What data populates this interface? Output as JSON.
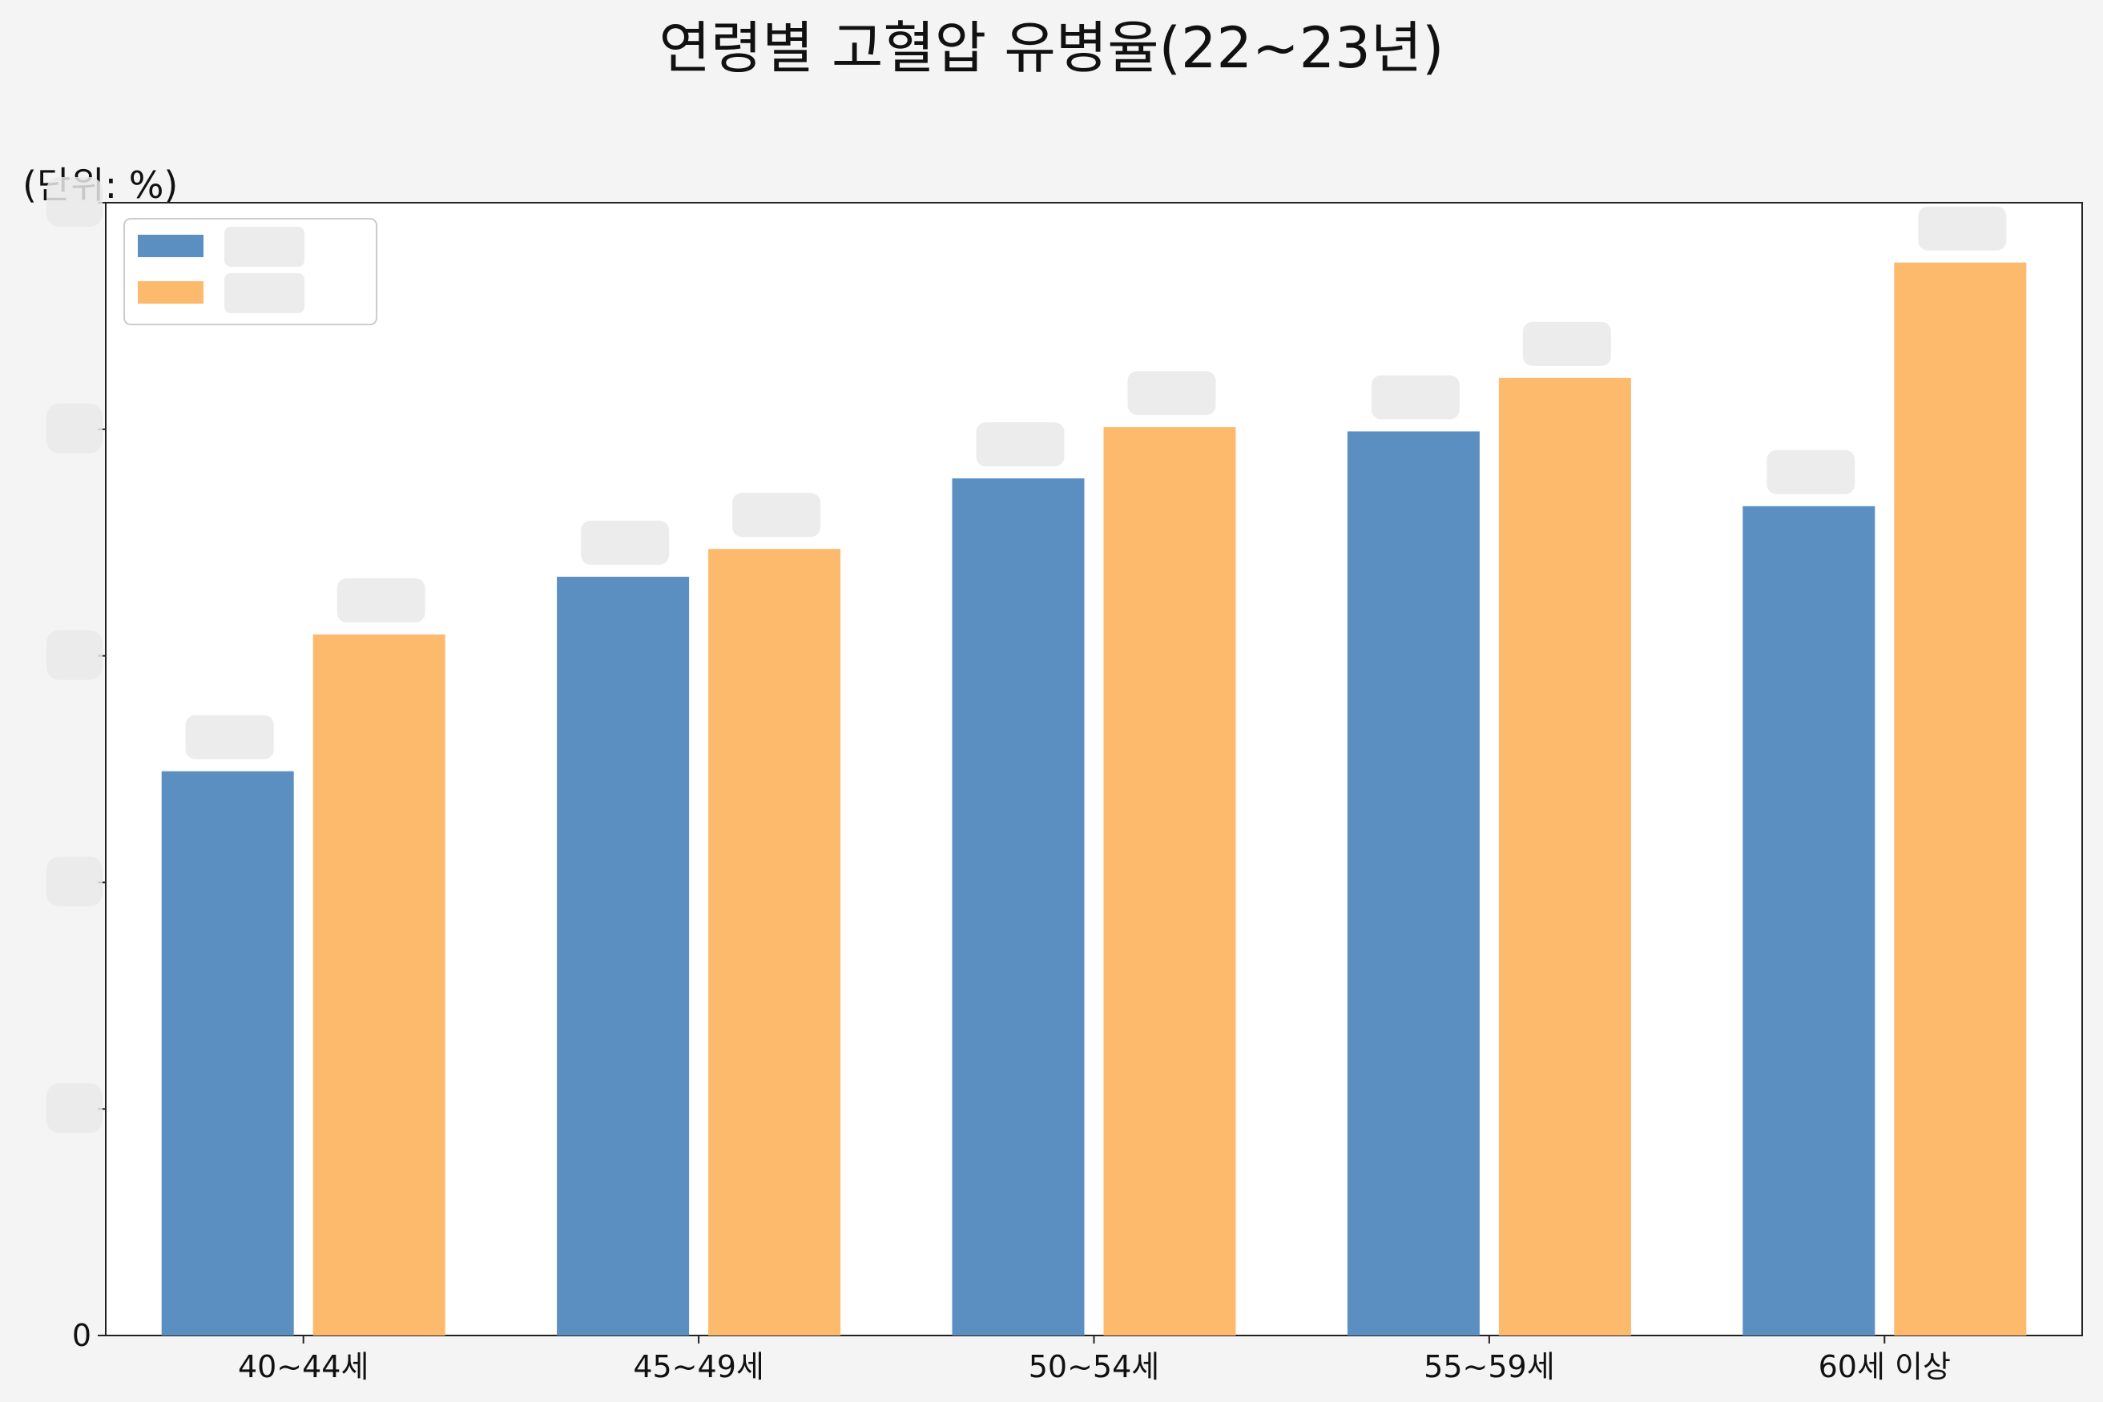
{
  "chart_data": {
    "type": "bar",
    "title": "연령별 고혈압 유병율(22~23년)",
    "unit": "(단위: %)",
    "categories": [
      "40~44세",
      "45~49세",
      "50~54세",
      "55~59세",
      "60세 이상"
    ],
    "series": [
      {
        "color": "#5b8fc2",
        "values": [
          26.4,
          35.5,
          40.1,
          42.3,
          38.8
        ]
      },
      {
        "color": "#fdba6d",
        "values": [
          32.8,
          36.8,
          42.5,
          44.8,
          50.2
        ]
      }
    ],
    "ylim": [
      0,
      53
    ],
    "y_ticks_shown": [
      "0"
    ],
    "grid": false,
    "legend_position": "top-left",
    "value_labels_obscured": true
  }
}
